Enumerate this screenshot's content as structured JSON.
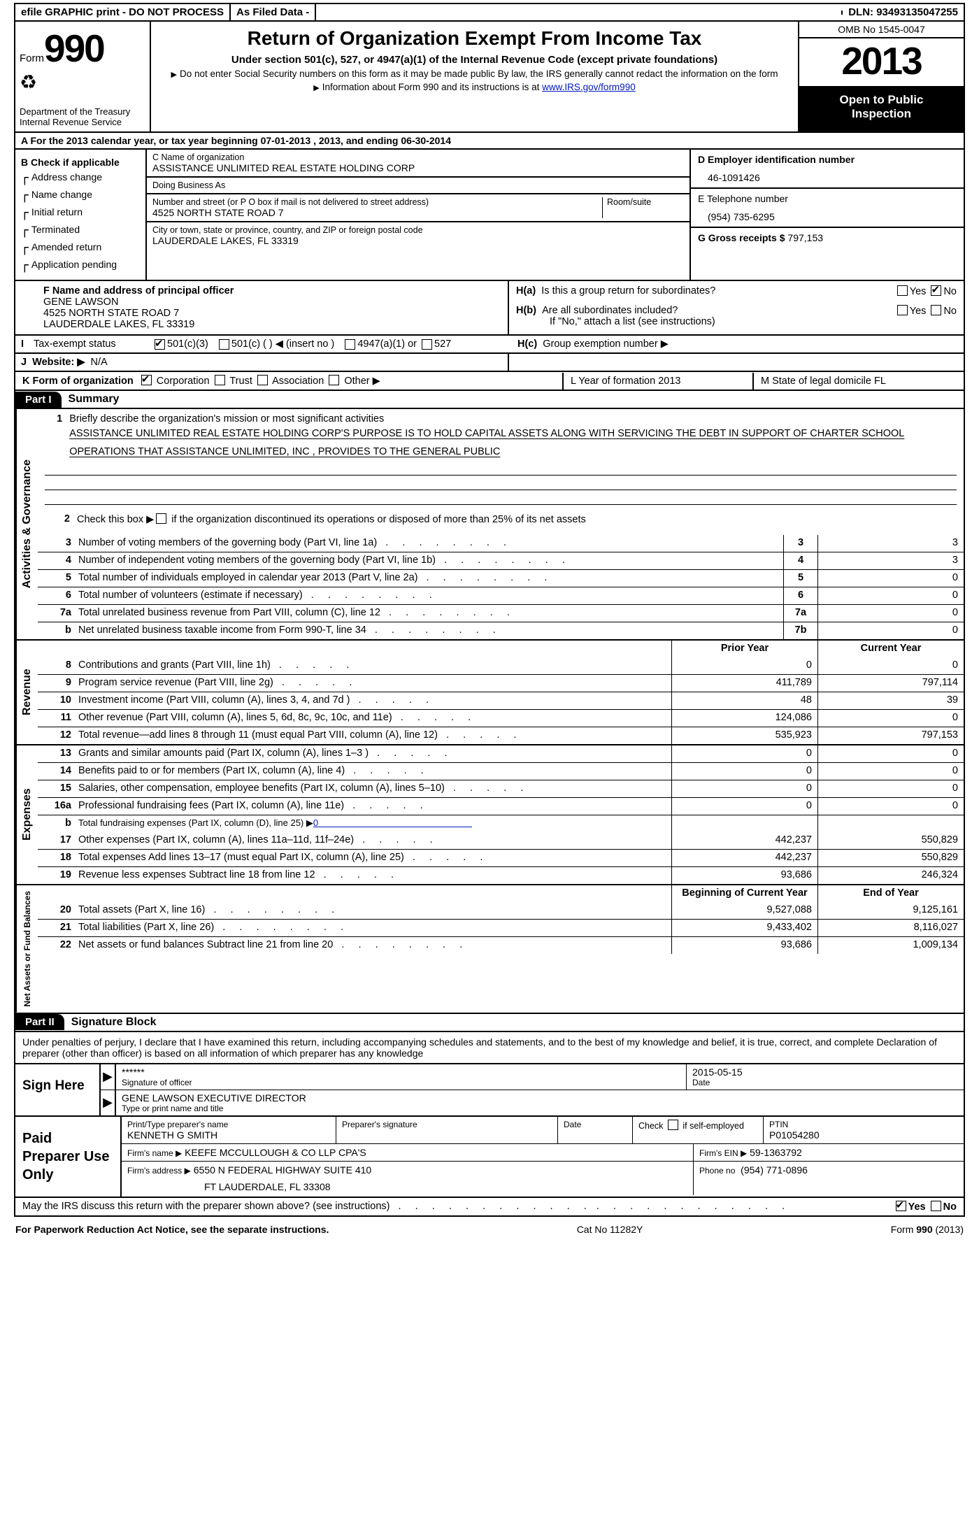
{
  "topbar": {
    "efile": "efile GRAPHIC print - DO NOT PROCESS",
    "asfiled": "As Filed Data -",
    "dln_label": "DLN:",
    "dln": "93493135047255"
  },
  "header": {
    "form_word": "Form",
    "form_num": "990",
    "dept1": "Department of the Treasury",
    "dept2": "Internal Revenue Service",
    "title": "Return of Organization Exempt From Income Tax",
    "sub": "Under section 501(c), 527, or 4947(a)(1) of the Internal Revenue Code (except private foundations)",
    "note1": "Do not enter Social Security numbers on this form as it may be made public  By law, the IRS generally cannot redact the information on the form",
    "note2": "Information about Form 990 and its instructions is at ",
    "note2_link": "www.IRS.gov/form990",
    "omb": "OMB No  1545-0047",
    "year": "2013",
    "open1": "Open to Public",
    "open2": "Inspection"
  },
  "rowA": "A  For the 2013 calendar year, or tax year beginning 07-01-2013     , 2013, and ending 06-30-2014",
  "colB": {
    "hdr": "B  Check if applicable",
    "items": [
      "Address change",
      "Name change",
      "Initial return",
      "Terminated",
      "Amended return",
      "Application pending"
    ]
  },
  "colC": {
    "name_lab": "C Name of organization",
    "name": "ASSISTANCE UNLIMITED REAL ESTATE HOLDING CORP",
    "dba_lab": "Doing Business As",
    "addr_lab": "Number and street (or P O  box if mail is not delivered to street address)",
    "room_lab": "Room/suite",
    "addr": "4525 NORTH STATE ROAD 7",
    "city_lab": "City or town, state or province, country, and ZIP or foreign postal code",
    "city": "LAUDERDALE LAKES, FL  33319"
  },
  "colD": {
    "ein_lab": "D Employer identification number",
    "ein": "46-1091426",
    "tel_lab": "E Telephone number",
    "tel": "(954) 735-6295",
    "gross_lab": "G Gross receipts $",
    "gross": "797,153"
  },
  "secF": {
    "lab": "F  Name and address of principal officer",
    "l1": "GENE LAWSON",
    "l2": "4525 NORTH STATE ROAD 7",
    "l3": "LAUDERDALE LAKES, FL  33319"
  },
  "secH": {
    "ha": "Is this a group return for subordinates?",
    "hb": "Are all subordinates included?",
    "hb2": "If \"No,\" attach a list  (see instructions)",
    "hc": "Group exemption number ▶",
    "ha_lab": "H(a)",
    "hb_lab": "H(b)",
    "hc_lab": "H(c)",
    "yes": "Yes",
    "no": "No"
  },
  "rowI": {
    "lab": "I",
    "txt": "Tax-exempt status",
    "o1": "501(c)(3)",
    "o2": "501(c) (   ) ◀ (insert no )",
    "o3": "4947(a)(1) or",
    "o4": "527"
  },
  "rowJ": {
    "lab": "J",
    "txt": "Website: ▶",
    "val": "N/A"
  },
  "rowK": {
    "k": "K Form of organization",
    "corp": "Corporation",
    "trust": "Trust",
    "assoc": "Association",
    "other": "Other ▶",
    "l": "L Year of formation  2013",
    "m": "M State of legal domicile  FL"
  },
  "part1": {
    "hdr": "Part I",
    "title": "Summary"
  },
  "mission": {
    "num": "1",
    "lab": "Briefly describe the organization's mission or most significant activities",
    "txt": "ASSISTANCE UNLIMITED REAL ESTATE HOLDING CORP'S PURPOSE IS TO HOLD CAPITAL ASSETS ALONG WITH SERVICING THE DEBT IN SUPPORT OF CHARTER SCHOOL OPERATIONS THAT ASSISTANCE UNLIMITED, INC , PROVIDES TO THE GENERAL PUBLIC"
  },
  "line2": {
    "num": "2",
    "txt": "Check this box ▶",
    "txt2": " if the organization discontinued its operations or disposed of more than 25% of its net assets"
  },
  "govlines": [
    {
      "n": "3",
      "d": "Number of voting members of the governing body (Part VI, line 1a)",
      "b": "3",
      "v": "3"
    },
    {
      "n": "4",
      "d": "Number of independent voting members of the governing body (Part VI, line 1b)",
      "b": "4",
      "v": "3"
    },
    {
      "n": "5",
      "d": "Total number of individuals employed in calendar year 2013 (Part V, line 2a)",
      "b": "5",
      "v": "0"
    },
    {
      "n": "6",
      "d": "Total number of volunteers (estimate if necessary)",
      "b": "6",
      "v": "0"
    },
    {
      "n": "7a",
      "d": "Total unrelated business revenue from Part VIII, column (C), line 12",
      "b": "7a",
      "v": "0"
    },
    {
      "n": "b",
      "d": "Net unrelated business taxable income from Form 990-T, line 34",
      "b": "7b",
      "v": "0"
    }
  ],
  "col_hdrs": {
    "prior": "Prior Year",
    "current": "Current Year",
    "boy": "Beginning of Current Year",
    "eoy": "End of Year"
  },
  "revenue": [
    {
      "n": "8",
      "d": "Contributions and grants (Part VIII, line 1h)",
      "p": "0",
      "c": "0"
    },
    {
      "n": "9",
      "d": "Program service revenue (Part VIII, line 2g)",
      "p": "411,789",
      "c": "797,114"
    },
    {
      "n": "10",
      "d": "Investment income (Part VIII, column (A), lines 3, 4, and 7d )",
      "p": "48",
      "c": "39"
    },
    {
      "n": "11",
      "d": "Other revenue (Part VIII, column (A), lines 5, 6d, 8c, 9c, 10c, and 11e)",
      "p": "124,086",
      "c": "0"
    },
    {
      "n": "12",
      "d": "Total revenue—add lines 8 through 11 (must equal Part VIII, column (A), line 12)",
      "p": "535,923",
      "c": "797,153"
    }
  ],
  "expenses": [
    {
      "n": "13",
      "d": "Grants and similar amounts paid (Part IX, column (A), lines 1–3 )",
      "p": "0",
      "c": "0"
    },
    {
      "n": "14",
      "d": "Benefits paid to or for members (Part IX, column (A), line 4)",
      "p": "0",
      "c": "0"
    },
    {
      "n": "15",
      "d": "Salaries, other compensation, employee benefits (Part IX, column (A), lines 5–10)",
      "p": "0",
      "c": "0"
    },
    {
      "n": "16a",
      "d": "Professional fundraising fees (Part IX, column (A), line 11e)",
      "p": "0",
      "c": "0"
    }
  ],
  "exp_b": {
    "n": "b",
    "d": "Total fundraising expenses (Part IX, column (D), line 25) ▶",
    "v": "0"
  },
  "expenses2": [
    {
      "n": "17",
      "d": "Other expenses (Part IX, column (A), lines 11a–11d, 11f–24e)",
      "p": "442,237",
      "c": "550,829"
    },
    {
      "n": "18",
      "d": "Total expenses  Add lines 13–17 (must equal Part IX, column (A), line 25)",
      "p": "442,237",
      "c": "550,829"
    },
    {
      "n": "19",
      "d": "Revenue less expenses  Subtract line 18 from line 12",
      "p": "93,686",
      "c": "246,324"
    }
  ],
  "netassets": [
    {
      "n": "20",
      "d": "Total assets (Part X, line 16)",
      "p": "9,527,088",
      "c": "9,125,161"
    },
    {
      "n": "21",
      "d": "Total liabilities (Part X, line 26)",
      "p": "9,433,402",
      "c": "8,116,027"
    },
    {
      "n": "22",
      "d": "Net assets or fund balances  Subtract line 21 from line 20",
      "p": "93,686",
      "c": "1,009,134"
    }
  ],
  "side_labels": {
    "gov": "Activities & Governance",
    "rev": "Revenue",
    "exp": "Expenses",
    "net": "Net Assets or Fund Balances"
  },
  "part2": {
    "hdr": "Part II",
    "title": "Signature Block"
  },
  "sig": {
    "intro": "Under penalties of perjury, I declare that I have examined this return, including accompanying schedules and statements, and to the best of my knowledge and belief, it is true, correct, and complete  Declaration of preparer (other than officer) is based on all information of which preparer has any knowledge",
    "sign_here": "Sign Here",
    "stars": "******",
    "date": "2015-05-15",
    "sig_of": "Signature of officer",
    "date_lab": "Date",
    "officer": "GENE LAWSON EXECUTIVE DIRECTOR",
    "type_lab": "Type or print name and title",
    "paid": "Paid Preparer Use Only",
    "prep_name_lab": "Print/Type preparer's name",
    "prep_name": "KENNETH G SMITH",
    "prep_sig_lab": "Preparer's signature",
    "prep_date_lab": "Date",
    "self_lab": "Check",
    "self_lab2": "if self-employed",
    "ptin_lab": "PTIN",
    "ptin": "P01054280",
    "firm_name_lab": "Firm's name   ▶",
    "firm_name": "KEEFE MCCULLOUGH & CO LLP CPA'S",
    "firm_ein_lab": "Firm's EIN ▶",
    "firm_ein": "59-1363792",
    "firm_addr_lab": "Firm's address ▶",
    "firm_addr1": "6550 N FEDERAL HIGHWAY SUITE 410",
    "firm_addr2": "FT LAUDERDALE, FL  33308",
    "phone_lab": "Phone no",
    "phone": "(954) 771-0896",
    "discuss": "May the IRS discuss this return with the preparer shown above? (see instructions)"
  },
  "footer": {
    "l": "For Paperwork Reduction Act Notice, see the separate instructions.",
    "m": "Cat No  11282Y",
    "r": "Form 990 (2013)"
  }
}
